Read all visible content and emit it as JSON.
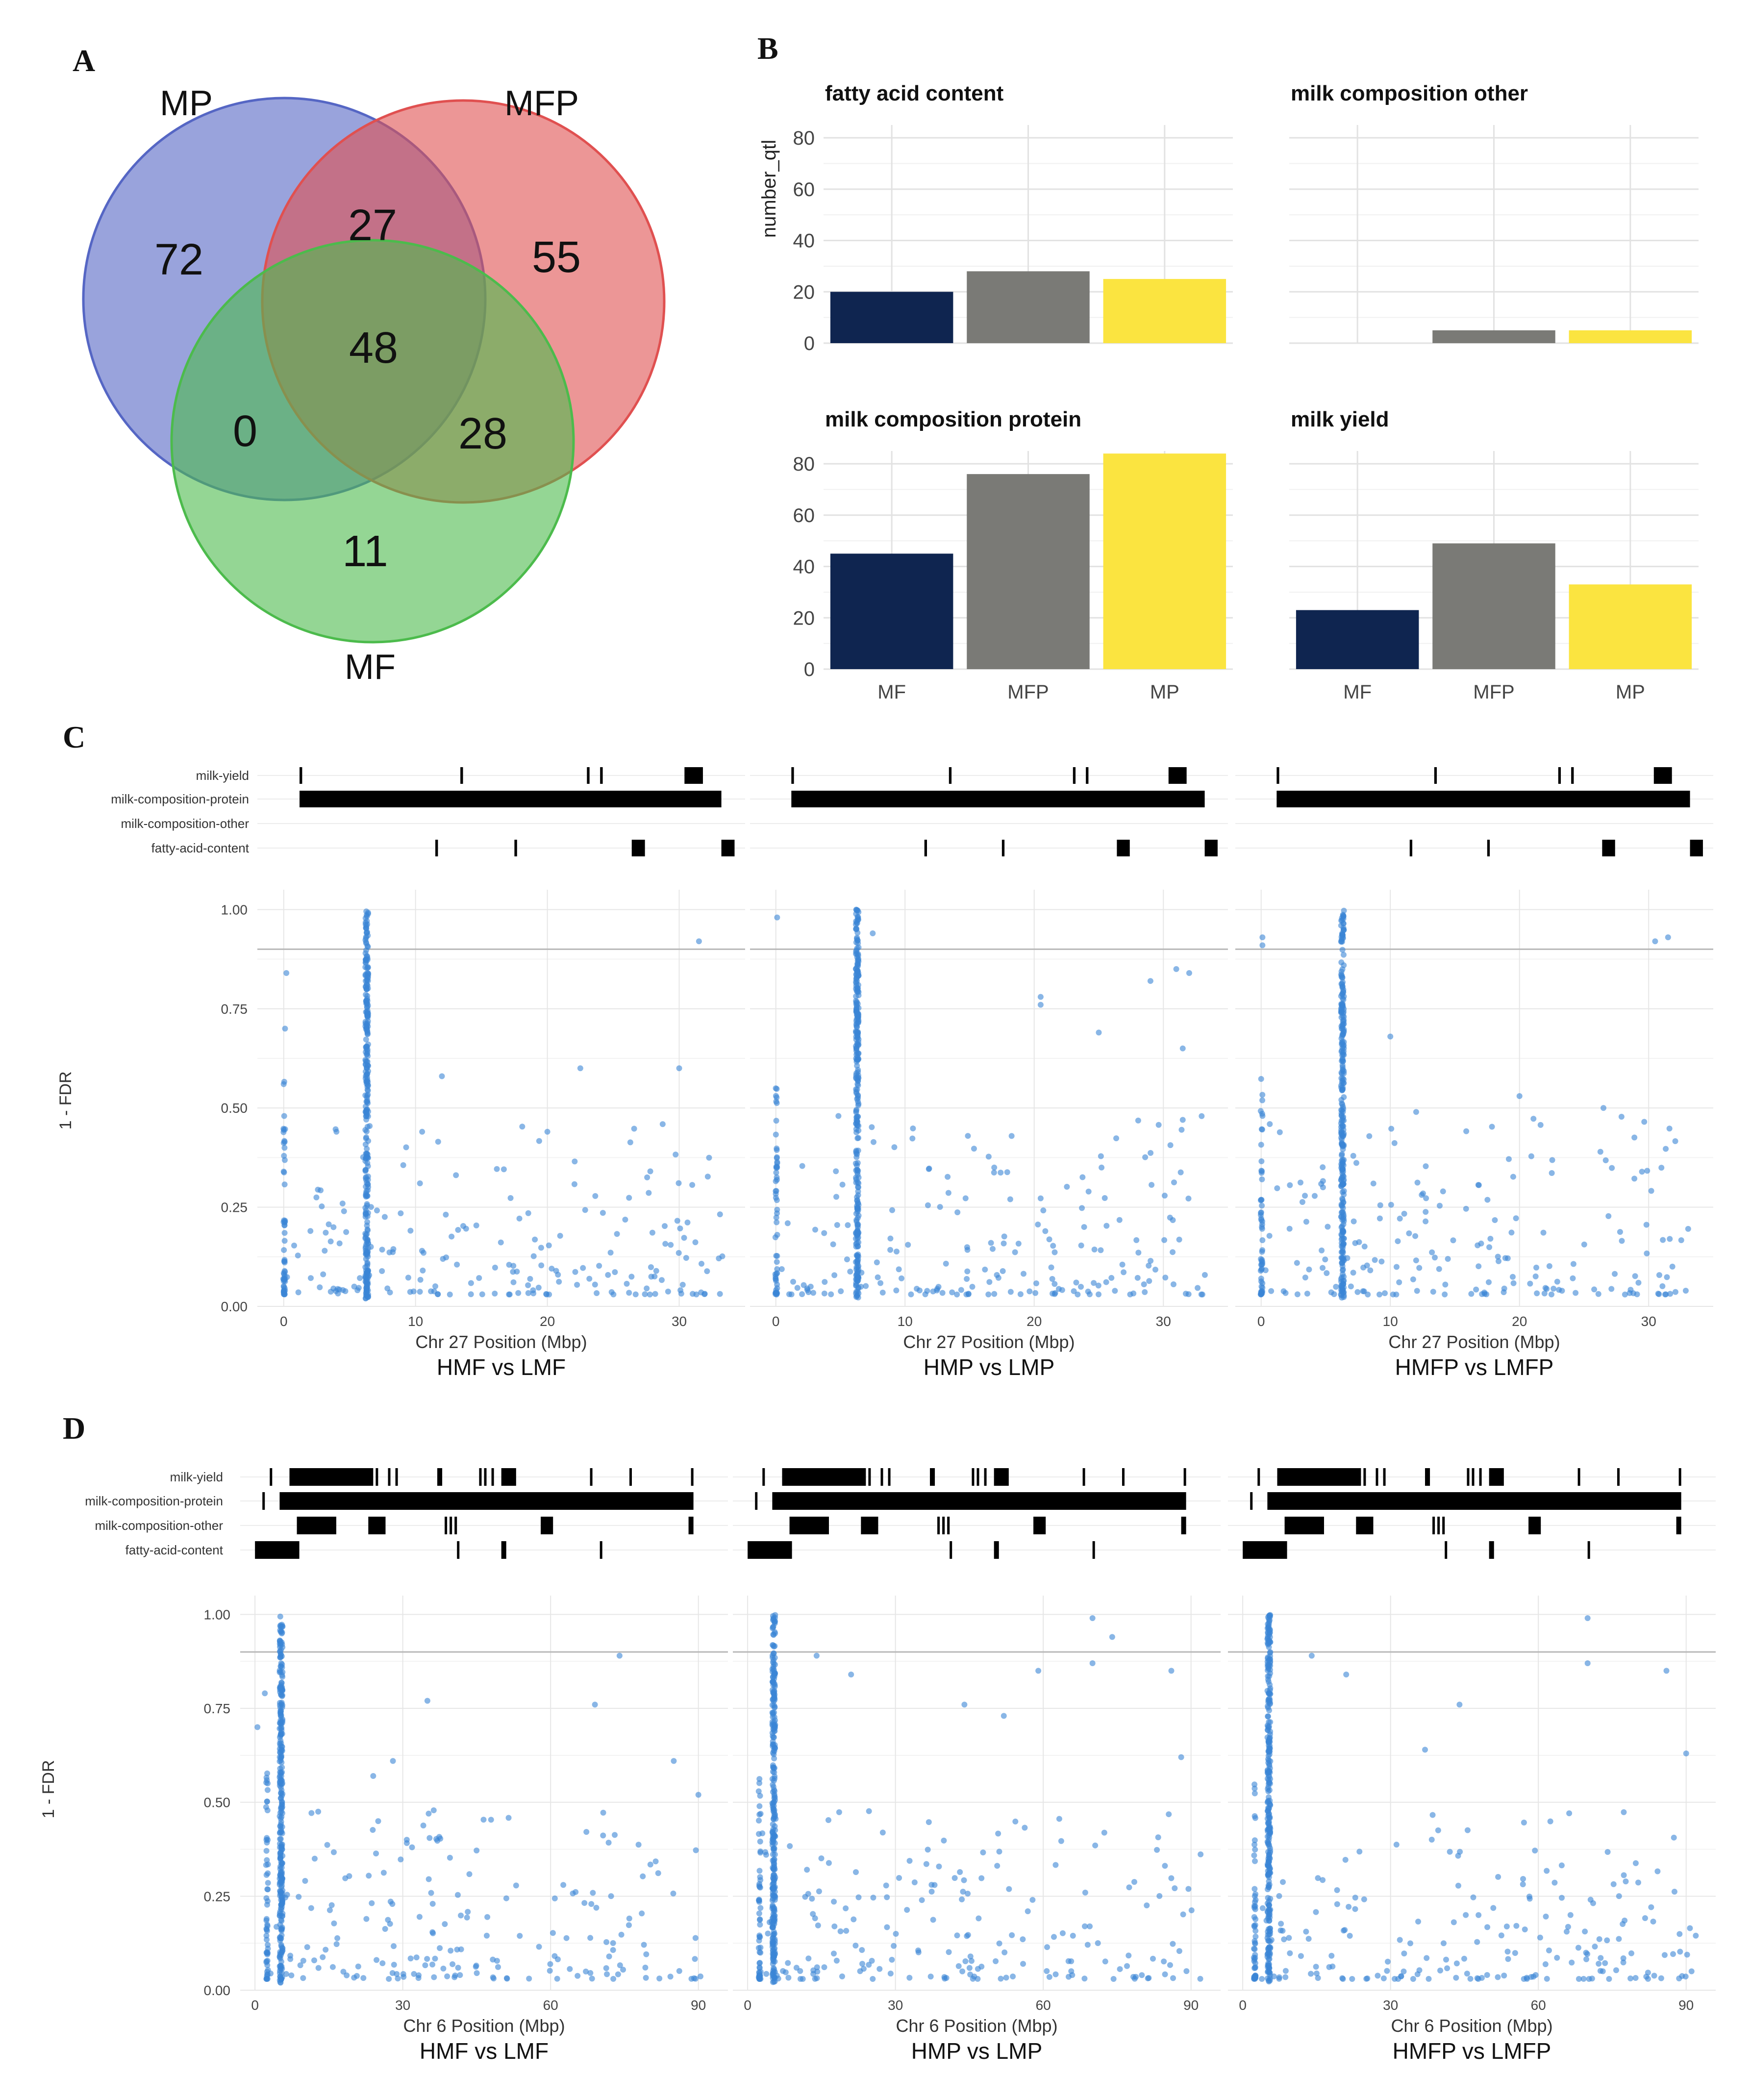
{
  "panels": {
    "a": "A",
    "b": "B",
    "c": "C",
    "d": "D"
  },
  "chart_data": [
    {
      "panel": "A",
      "type": "venn",
      "sets": [
        "MP",
        "MFP",
        "MF"
      ],
      "regions": {
        "MP_only": 72,
        "MFP_only": 55,
        "MF_only": 11,
        "MP_MFP": 27,
        "MP_MF": 0,
        "MFP_MF": 28,
        "all_three": 48
      },
      "colors": {
        "MP": "#5566c4",
        "MFP": "#e05050",
        "MF": "#4cbb4c"
      }
    },
    {
      "panel": "B",
      "type": "bar",
      "ylabel": "number_qtl",
      "categories": [
        "MF",
        "MFP",
        "MP"
      ],
      "colors": {
        "MF": "#0f2550",
        "MFP": "#7a7a76",
        "MP": "#fbe440"
      },
      "facets": [
        {
          "title": "fatty acid content",
          "values": [
            20,
            28,
            25
          ],
          "yticks": [
            "80",
            "60",
            "40",
            "20",
            "0"
          ],
          "ylim": [
            0,
            85
          ]
        },
        {
          "title": "milk composition other",
          "values": [
            0,
            5,
            5
          ],
          "yticks": [],
          "ylim": [
            0,
            85
          ]
        },
        {
          "title": "milk composition protein",
          "values": [
            45,
            76,
            84
          ],
          "yticks": [
            "80",
            "60",
            "40",
            "20",
            "0"
          ],
          "ylim": [
            0,
            85
          ]
        },
        {
          "title": "milk yield",
          "values": [
            23,
            49,
            33
          ],
          "yticks": [],
          "ylim": [
            0,
            85
          ]
        }
      ]
    },
    {
      "panel": "C",
      "type": "scatter",
      "chromosome": "Chr 27",
      "xlabel": "Chr 27  Position (Mbp)",
      "ylabel": "1 - FDR",
      "xlim": [
        -2,
        35
      ],
      "ylim": [
        0,
        1.05
      ],
      "xticks": [
        "0",
        "10",
        "20",
        "30"
      ],
      "yticks": [
        "1.00",
        "0.75",
        "0.50",
        "0.25",
        "0.00"
      ],
      "threshold": 0.9,
      "cluster_position": 6.3,
      "tracks": [
        "milk-yield",
        "milk-composition-protein",
        "milk-composition-other",
        "fatty-acid-content"
      ],
      "qtl_intervals": {
        "milk-yield": [
          [
            1.2,
            1.4
          ],
          [
            13.4,
            13.6
          ],
          [
            23,
            23.2
          ],
          [
            24,
            24.2
          ],
          [
            30.4,
            31.8
          ]
        ],
        "milk-composition-protein": [
          [
            1.2,
            33.2
          ]
        ],
        "milk-composition-other": [],
        "fatty-acid-content": [
          [
            11.5,
            11.7
          ],
          [
            17.5,
            17.7
          ],
          [
            26.4,
            27.4
          ],
          [
            33.2,
            34.2
          ]
        ]
      },
      "comparisons": [
        "HMF vs LMF",
        "HMP vs LMP",
        "HMFP vs LMFP"
      ],
      "outliers": [
        [
          [
            31.5,
            0.92
          ],
          [
            22.5,
            0.6
          ],
          [
            30,
            0.6
          ],
          [
            12,
            0.58
          ],
          [
            0.2,
            0.84
          ],
          [
            0.1,
            0.7
          ],
          [
            4,
            0.44
          ],
          [
            10.5,
            0.44
          ],
          [
            20,
            0.44
          ]
        ],
        [
          [
            0.1,
            0.98
          ],
          [
            7.5,
            0.94
          ],
          [
            20.5,
            0.78
          ],
          [
            20.5,
            0.76
          ],
          [
            25,
            0.69
          ],
          [
            31,
            0.85
          ],
          [
            32,
            0.84
          ],
          [
            29,
            0.82
          ],
          [
            31.5,
            0.65
          ],
          [
            31.5,
            0.47
          ]
        ],
        [
          [
            0.1,
            0.93
          ],
          [
            0.1,
            0.91
          ],
          [
            30.5,
            0.92
          ],
          [
            31.5,
            0.93
          ],
          [
            10,
            0.68
          ],
          [
            20,
            0.53
          ],
          [
            26.5,
            0.5
          ],
          [
            12,
            0.49
          ]
        ]
      ]
    },
    {
      "panel": "D",
      "type": "scatter",
      "chromosome": "Chr 6",
      "xlabel": "Chr 6 Position (Mbp)",
      "ylabel": "1 - FDR",
      "xlim": [
        -3,
        96
      ],
      "ylim": [
        0,
        1.05
      ],
      "xticks": [
        "0",
        "30",
        "60",
        "90"
      ],
      "yticks": [
        "1.00",
        "0.75",
        "0.50",
        "0.25",
        "0.00"
      ],
      "threshold": 0.9,
      "cluster_position": 5.3,
      "tracks": [
        "milk-yield",
        "milk-composition-protein",
        "milk-composition-other",
        "fatty-acid-content"
      ],
      "qtl_intervals": {
        "milk-yield": [
          [
            3,
            3.3
          ],
          [
            7,
            24
          ],
          [
            24.5,
            24.8
          ],
          [
            27,
            27.3
          ],
          [
            28.5,
            28.8
          ],
          [
            37,
            38
          ],
          [
            45.5,
            46
          ],
          [
            46.5,
            47
          ],
          [
            48,
            48.5
          ],
          [
            50,
            53
          ],
          [
            68,
            68.3
          ],
          [
            76,
            76.3
          ],
          [
            88.5,
            89
          ]
        ],
        "milk-composition-protein": [
          [
            1.5,
            1.8
          ],
          [
            5,
            89
          ]
        ],
        "milk-composition-other": [
          [
            8.5,
            16.5
          ],
          [
            23,
            26.5
          ],
          [
            38.5,
            39
          ],
          [
            39.5,
            40
          ],
          [
            40.5,
            41
          ],
          [
            58,
            60.5
          ],
          [
            88,
            89
          ]
        ],
        "fatty-acid-content": [
          [
            0,
            9
          ],
          [
            50,
            51
          ],
          [
            41,
            41.3
          ],
          [
            70,
            70.3
          ]
        ]
      },
      "comparisons": [
        "HMF vs LMF",
        "HMP vs LMP",
        "HMFP vs LMFP"
      ],
      "outliers": [
        [
          [
            74,
            0.89
          ],
          [
            35,
            0.77
          ],
          [
            69,
            0.76
          ],
          [
            2,
            0.79
          ],
          [
            0.5,
            0.7
          ],
          [
            24,
            0.57
          ],
          [
            28,
            0.61
          ],
          [
            85,
            0.61
          ],
          [
            90,
            0.52
          ]
        ],
        [
          [
            70,
            0.99
          ],
          [
            74,
            0.94
          ],
          [
            14,
            0.89
          ],
          [
            70,
            0.87
          ],
          [
            86,
            0.85
          ],
          [
            21,
            0.84
          ],
          [
            44,
            0.76
          ],
          [
            52,
            0.73
          ],
          [
            59,
            0.85
          ],
          [
            88,
            0.62
          ]
        ],
        [
          [
            70,
            0.99
          ],
          [
            14,
            0.89
          ],
          [
            70,
            0.87
          ],
          [
            86,
            0.85
          ],
          [
            21,
            0.84
          ],
          [
            44,
            0.76
          ],
          [
            37,
            0.64
          ],
          [
            90,
            0.63
          ]
        ]
      ]
    }
  ]
}
